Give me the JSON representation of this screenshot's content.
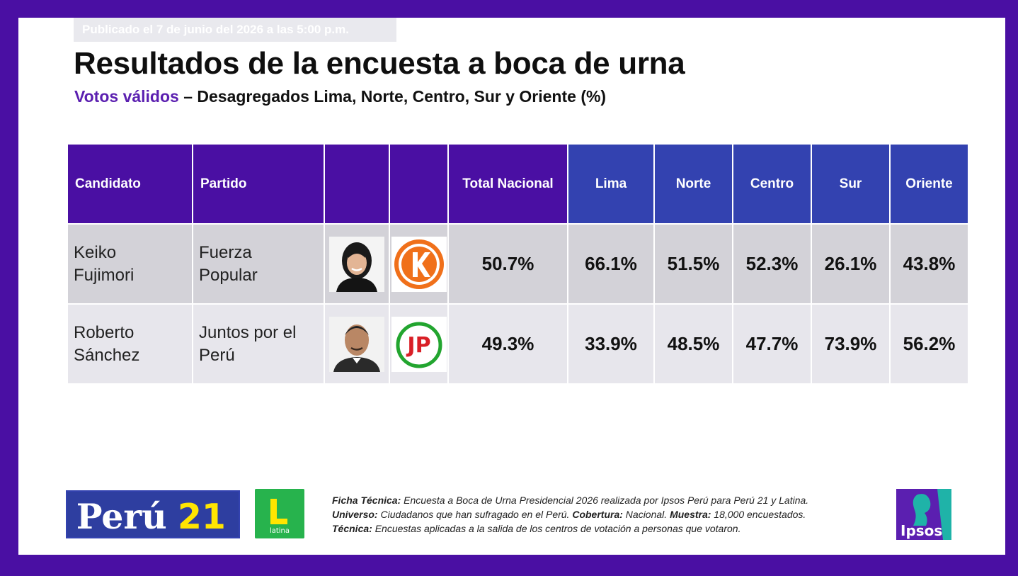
{
  "header": {
    "published": "Publicado el 7 de junio del 2026 a las 5:00 p.m.",
    "title": "Resultados de la encuesta a boca de urna",
    "subtitle_highlight": "Votos válidos",
    "subtitle_rest": " – Desagregados Lima, Norte, Centro, Sur y Oriente (%)"
  },
  "table": {
    "headers": [
      "Candidato",
      "Partido",
      "",
      "",
      "Total Nacional",
      "Lima",
      "Norte",
      "Centro",
      "Sur",
      "Oriente"
    ],
    "rows": [
      {
        "candidate_line1": "Keiko",
        "candidate_line2": "Fujimori",
        "party_line1": "Fuerza",
        "party_line2": "Popular",
        "photo_icon": "keiko-fujimori-photo",
        "logo_icon": "fuerza-popular-logo",
        "values": [
          "50.7%",
          "66.1%",
          "51.5%",
          "52.3%",
          "26.1%",
          "43.8%"
        ]
      },
      {
        "candidate_line1": "Roberto",
        "candidate_line2": "Sánchez",
        "party_line1": "Juntos por el",
        "party_line2": "Perú",
        "photo_icon": "roberto-sanchez-photo",
        "logo_icon": "juntos-por-el-peru-logo",
        "values": [
          "49.3%",
          "33.9%",
          "48.5%",
          "47.7%",
          "73.9%",
          "56.2%"
        ]
      }
    ]
  },
  "footer": {
    "peru21_logo": "Perú21",
    "latina_logo": "latina",
    "ipsos_logo": "Ipsos",
    "ficha_label": "Ficha Técnica:",
    "ficha_text": " Encuesta a Boca de Urna Presidencial 2026 realizada por Ipsos Perú para Perú 21 y Latina.",
    "universo_label": "Universo:",
    "universo_text": " Ciudadanos que han sufragado en el Perú. ",
    "cobertura_label": "Cobertura:",
    "cobertura_text": " Nacional. ",
    "muestra_label": "Muestra:",
    "muestra_text": " 18,000 encuestados.",
    "tecnica_label": "Técnica:",
    "tecnica_text": " Encuestas aplicadas a la salida de los centros de votación a personas que votaron."
  },
  "colors": {
    "frame_purple": "#4a0fa3",
    "header_blue": "#3342b0",
    "highlight_purple": "#5b1fb0",
    "row_dark": "#d3d2d8",
    "row_light": "#e7e6ec"
  }
}
